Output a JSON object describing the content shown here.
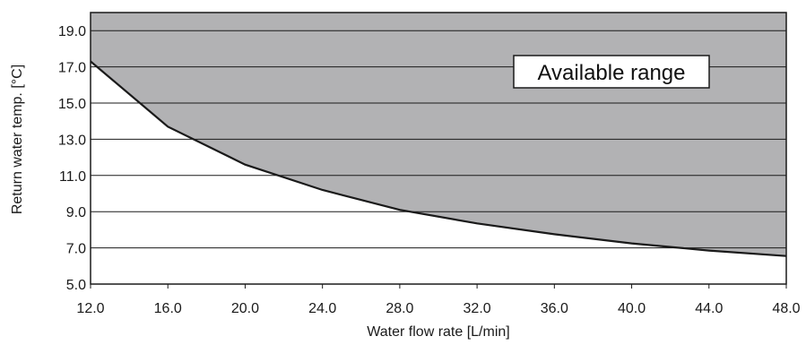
{
  "chart_data": {
    "type": "area",
    "xlabel": "Water flow rate [L/min]",
    "ylabel": "Return water temp. [°C]",
    "xlim": [
      12.0,
      48.0
    ],
    "ylim": [
      5.0,
      20.0
    ],
    "x_ticks": [
      "12.0",
      "16.0",
      "20.0",
      "24.0",
      "28.0",
      "32.0",
      "36.0",
      "40.0",
      "44.0",
      "48.0"
    ],
    "y_ticks": [
      "5.0",
      "7.0",
      "9.0",
      "11.0",
      "13.0",
      "15.0",
      "17.0",
      "19.0"
    ],
    "grid": "horizontal",
    "series": [
      {
        "x": [
          12,
          16,
          20,
          24,
          28,
          32,
          36,
          40,
          44,
          48
        ],
        "y": [
          17.3,
          13.7,
          11.6,
          10.2,
          9.1,
          8.35,
          7.75,
          7.25,
          6.85,
          6.55
        ]
      }
    ],
    "fill_above_color": "#b2b2b4",
    "annotation": "Available range"
  }
}
